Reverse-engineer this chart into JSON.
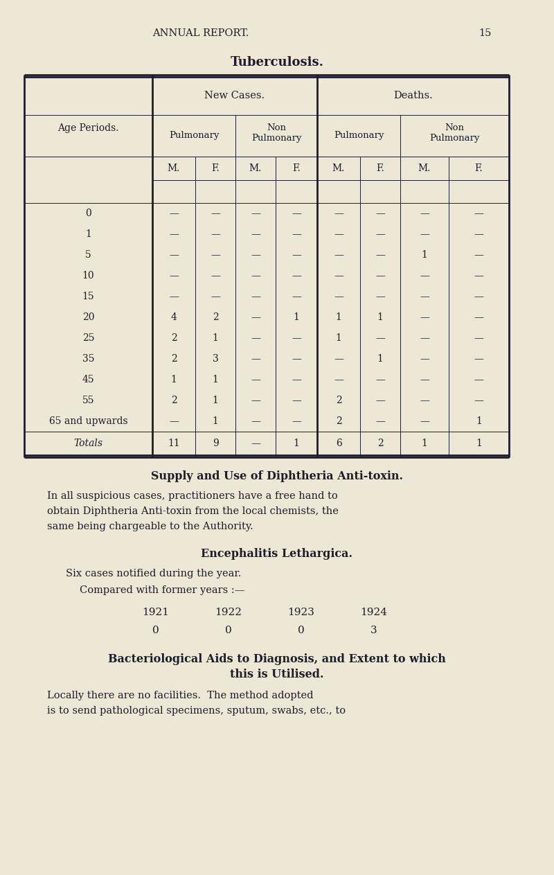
{
  "bg_color": "#ede8d5",
  "text_color": "#1c1c2e",
  "page_header": "ANNUAL REPORT.",
  "page_number": "15",
  "tb_title": "Tuberculosis.",
  "table": {
    "age_periods": [
      "0",
      "1",
      "5",
      "10",
      "15",
      "20",
      "25",
      "35",
      "45",
      "55",
      "65 and upwards",
      "Totals"
    ],
    "new_cases_pulmonary_m": [
      "—",
      "—",
      "—",
      "—",
      "—",
      "4",
      "2",
      "2",
      "1",
      "2",
      "—",
      "11"
    ],
    "new_cases_pulmonary_f": [
      "—",
      "—",
      "—",
      "—",
      "—",
      "2",
      "1",
      "3",
      "1",
      "1",
      "1",
      "9"
    ],
    "new_cases_non_pulmonary_m": [
      "—",
      "—",
      "—",
      "—",
      "—",
      "—",
      "—",
      "—",
      "—",
      "—",
      "—",
      "—"
    ],
    "new_cases_non_pulmonary_f": [
      "—",
      "—",
      "—",
      "—",
      "—",
      "1",
      "—",
      "—",
      "—",
      "—",
      "—",
      "1"
    ],
    "deaths_pulmonary_m": [
      "—",
      "—",
      "—",
      "—",
      "—",
      "1",
      "1",
      "—",
      "—",
      "2",
      "2",
      "6"
    ],
    "deaths_pulmonary_f": [
      "—",
      "—",
      "—",
      "—",
      "—",
      "1",
      "—",
      "1",
      "—",
      "—",
      "—",
      "2"
    ],
    "deaths_non_pulmonary_m": [
      "—",
      "—",
      "1",
      "—",
      "—",
      "—",
      "—",
      "—",
      "—",
      "—",
      "—",
      "1"
    ],
    "deaths_non_pulmonary_f": [
      "—",
      "—",
      "—",
      "—",
      "—",
      "—",
      "—",
      "—",
      "—",
      "—",
      "1",
      "1"
    ]
  },
  "diphtheria_title": "Supply and Use of Diphtheria Anti-toxin.",
  "diphtheria_lines": [
    "In all suspicious cases, practitioners have a free hand to",
    "obtain Diphtheria Anti-toxin from the local chemists, the",
    "same being chargeable to the Authority."
  ],
  "encephalitis_title": "Encephalitis Lethargica.",
  "encephalitis_text1": "Six cases notified during the year.",
  "encephalitis_text2": "Compared with former years :—",
  "encephalitis_years": [
    "1921",
    "1922",
    "1923",
    "1924"
  ],
  "encephalitis_values": [
    "0",
    "0",
    "0",
    "3"
  ],
  "bacteriological_title_line1": "Bacteriological Aids to Diagnosis, and Extent to which",
  "bacteriological_title_line2": "this is Utilised.",
  "bacteriological_lines": [
    "Locally there are no facilities.  The method adopted",
    "is to send pathological specimens, sputum, swabs, etc., to"
  ]
}
